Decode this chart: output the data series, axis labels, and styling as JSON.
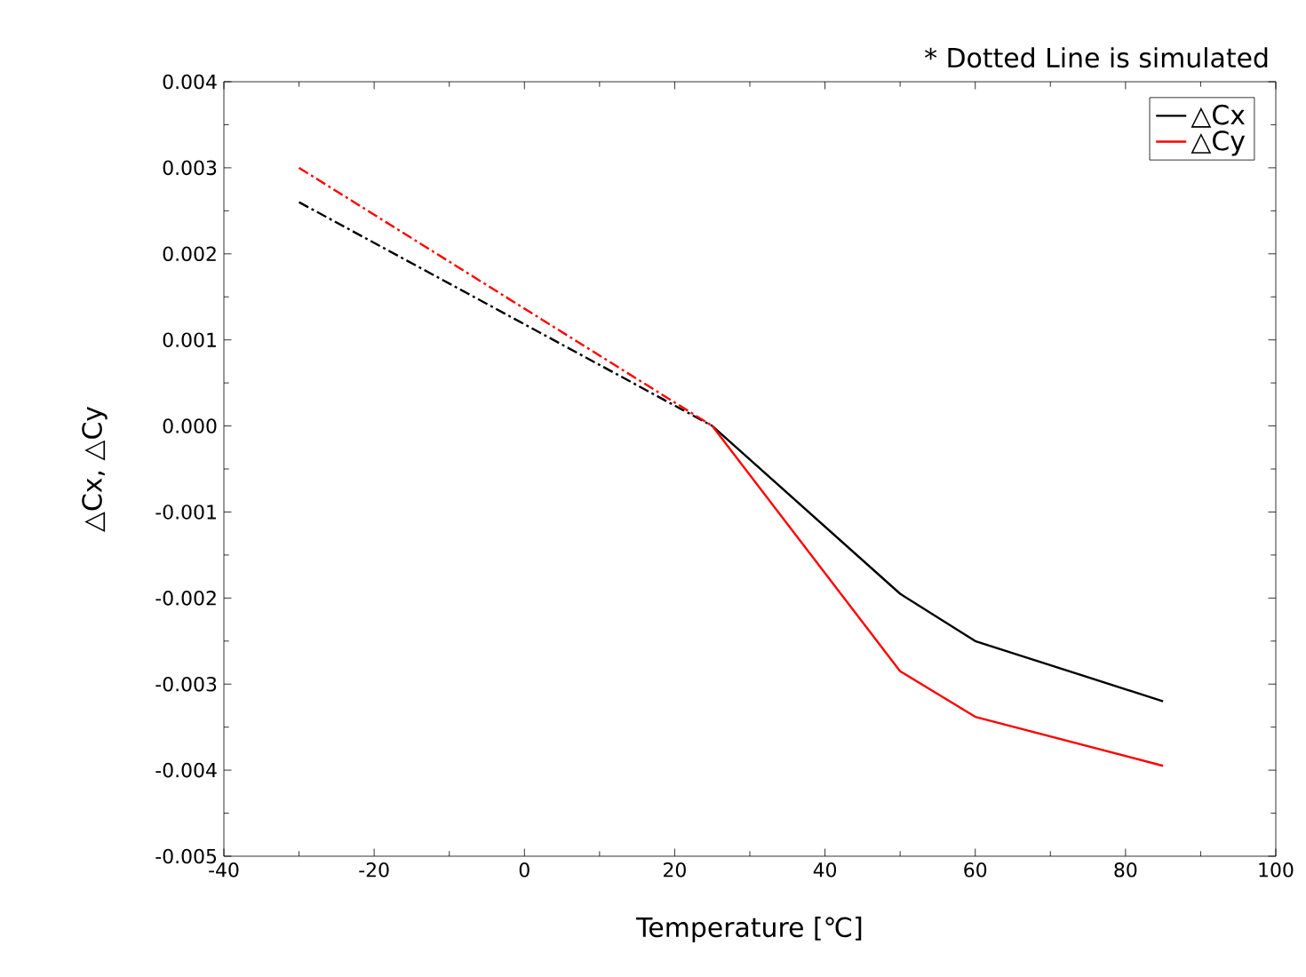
{
  "chart_data": {
    "type": "line",
    "xlabel": "Temperature [℃]",
    "ylabel": "△Cx, △Cy",
    "annotations": [
      "* Dotted Line is simulated"
    ],
    "xlim": [
      -40,
      100
    ],
    "xticks": [
      -40,
      -20,
      0,
      20,
      40,
      60,
      80,
      100
    ],
    "ylim": [
      -0.005,
      0.004
    ],
    "yticks": [
      {
        "value": -0.005,
        "label": "-0.005"
      },
      {
        "value": -0.004,
        "label": "-0.004"
      },
      {
        "value": -0.003,
        "label": "-0.003"
      },
      {
        "value": -0.002,
        "label": "-0.002"
      },
      {
        "value": -0.001,
        "label": "-0.001"
      },
      {
        "value": 0,
        "label": "0.000"
      },
      {
        "value": 0.001,
        "label": "0.001"
      },
      {
        "value": 0.002,
        "label": "0.002"
      },
      {
        "value": 0.003,
        "label": "0.003"
      },
      {
        "value": 0.004,
        "label": "0.004"
      }
    ],
    "grid": false,
    "legend": "top right",
    "marker": "none",
    "series": [
      {
        "name": "△Cx",
        "color": "#000000",
        "x": [
          25,
          50,
          60,
          85
        ],
        "values": [
          0,
          -0.00195,
          -0.0025,
          -0.0032
        ],
        "line_style": "solid"
      },
      {
        "name": "△Cy",
        "color": "#ff0000",
        "x": [
          25,
          50,
          60,
          85
        ],
        "values": [
          0,
          -0.00285,
          -0.00338,
          -0.00395
        ],
        "line_style": "solid"
      },
      {
        "color": "#000000",
        "x": [
          -30,
          25
        ],
        "values": [
          0.0026,
          0
        ],
        "line_style": "dotted"
      },
      {
        "color": "#ff0000",
        "x": [
          -30,
          25
        ],
        "values": [
          0.003,
          0
        ],
        "line_style": "dotted"
      }
    ]
  }
}
